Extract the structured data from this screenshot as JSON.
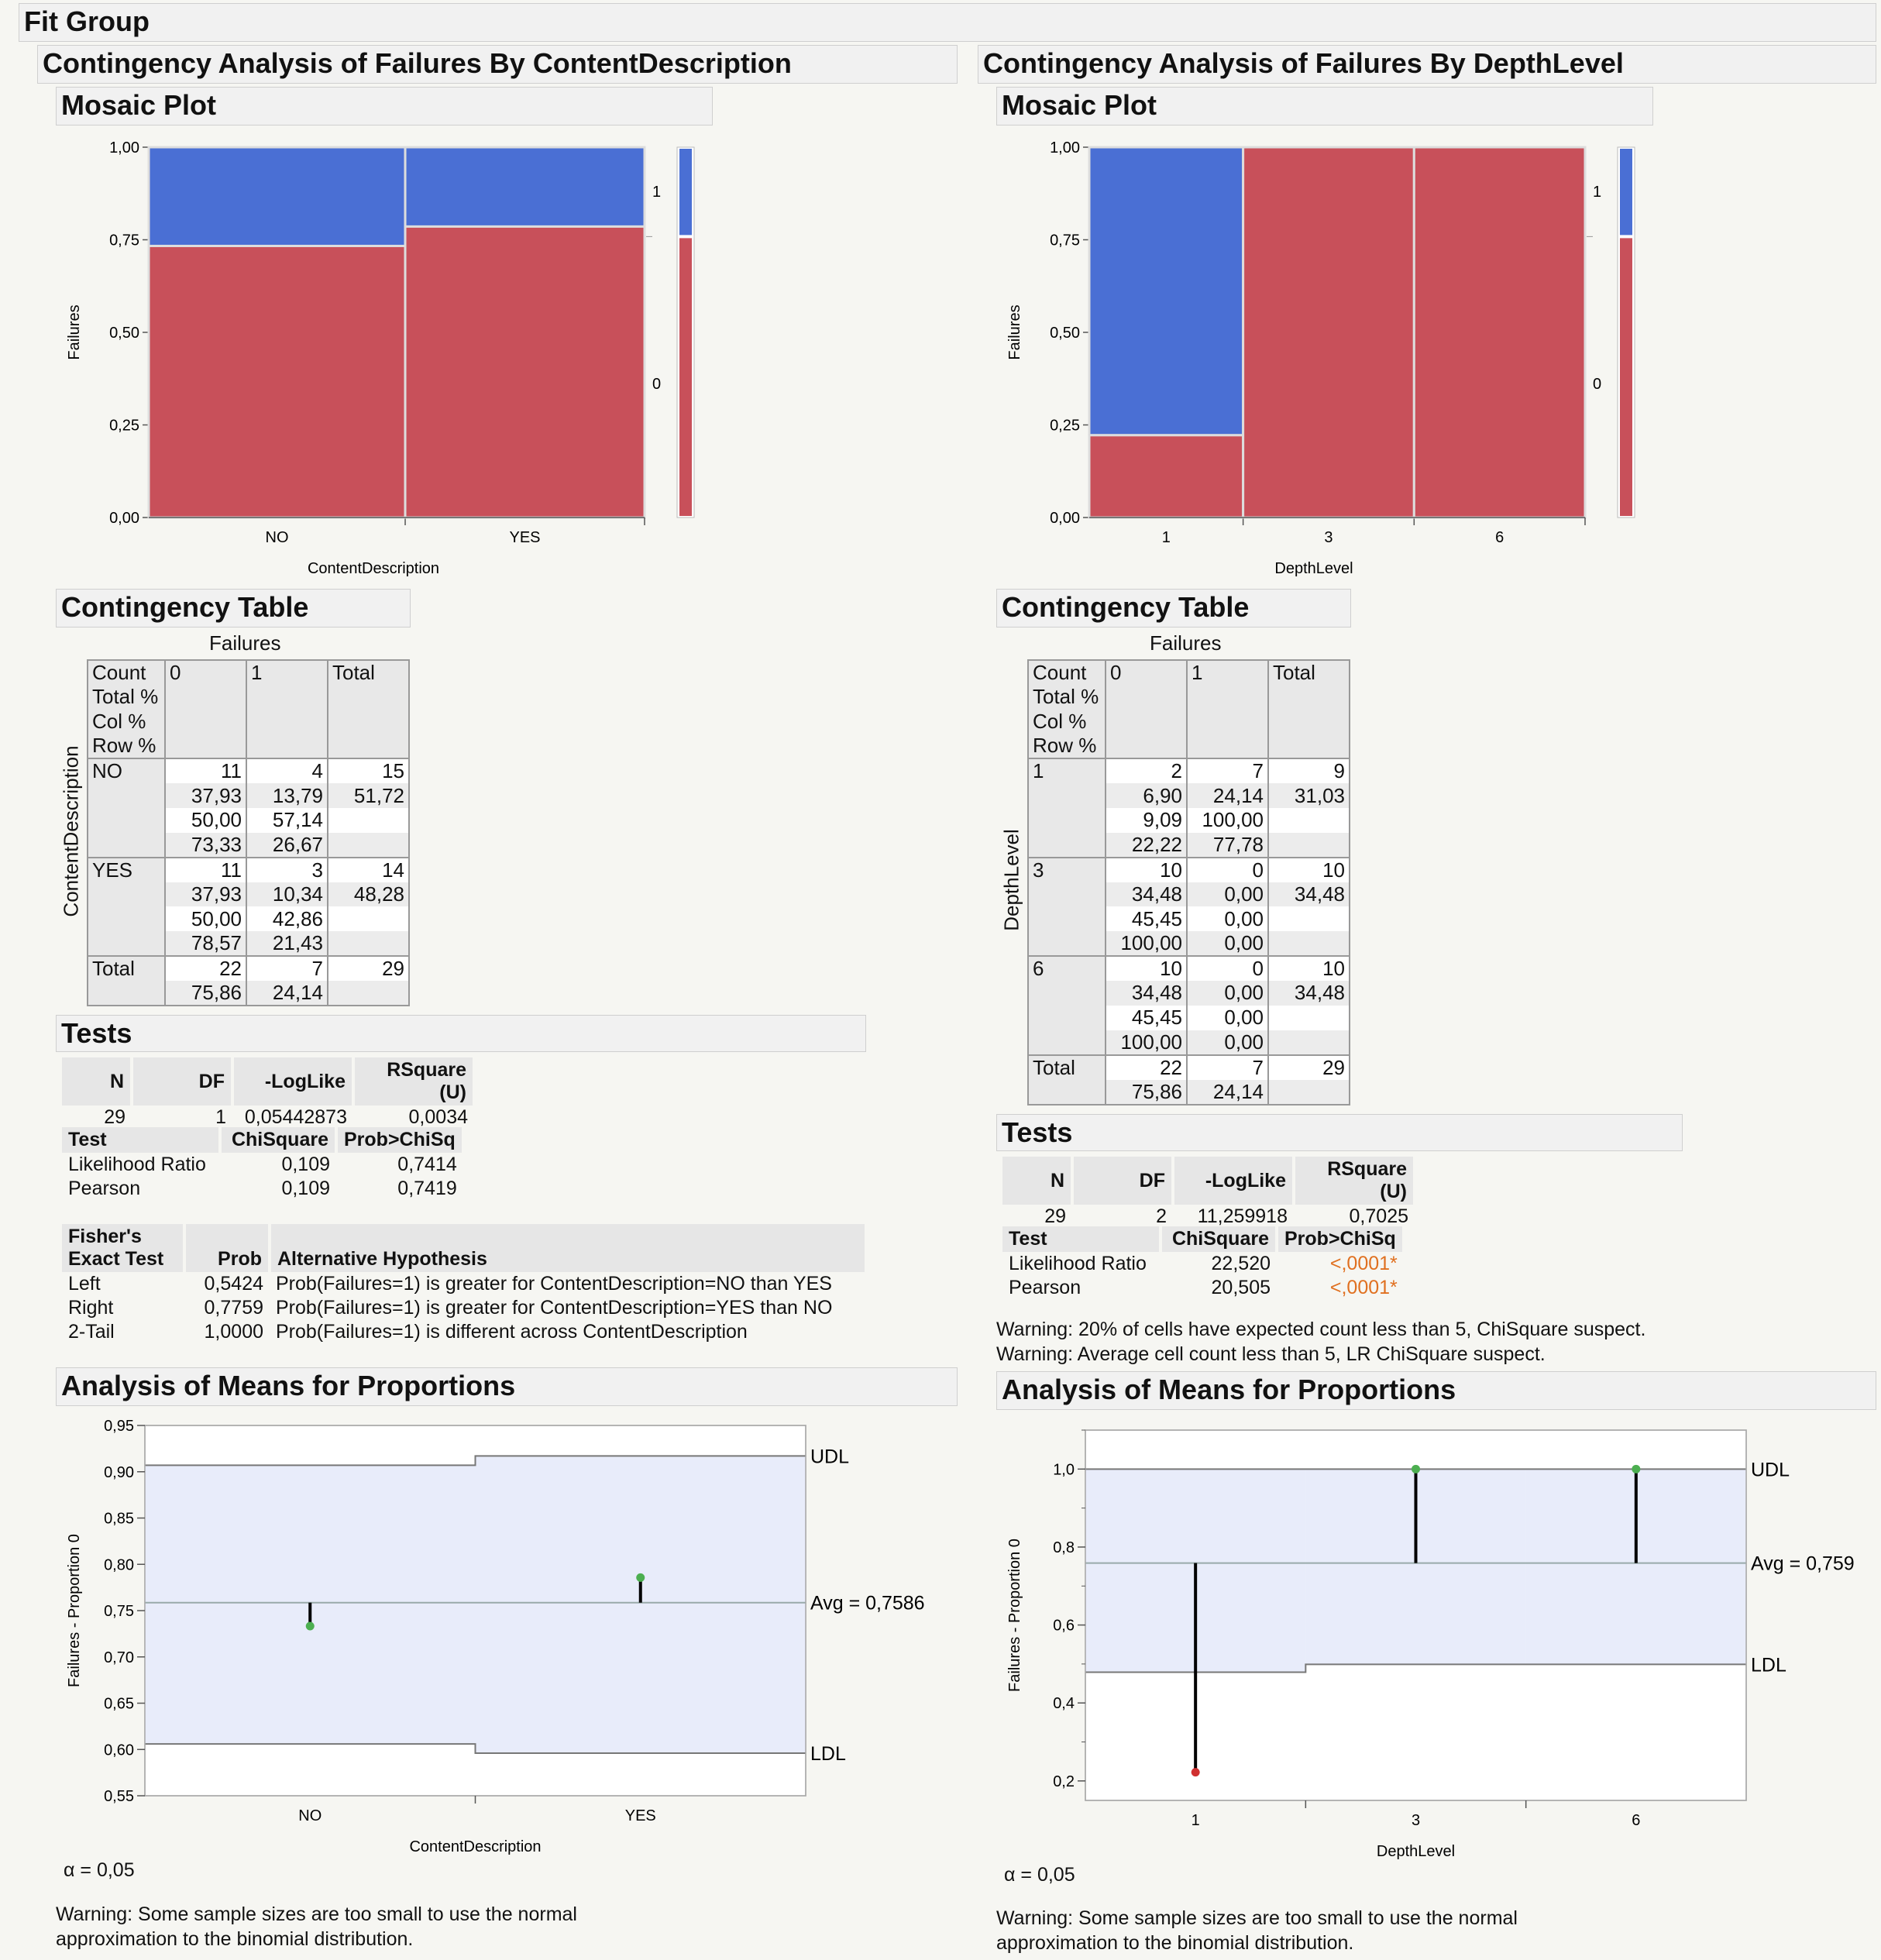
{
  "title": "Fit Group",
  "colors": {
    "blue": "#4a6fd4",
    "red": "#c8505a",
    "band": "#e8ecfa",
    "orange": "#e07020",
    "green": "#4caf50"
  },
  "left": {
    "title": "Contingency Analysis of Failures By ContentDescription",
    "mosaic": {
      "title": "Mosaic Plot",
      "ylabel": "Failures",
      "xlabel": "ContentDescription",
      "yticks": [
        "1,00",
        "0,75",
        "0,50",
        "0,25",
        "0,00"
      ],
      "categories": [
        "NO",
        "YES"
      ],
      "legend": [
        "1",
        "0"
      ]
    },
    "table": {
      "title": "Contingency Table",
      "col_header": "Failures",
      "row_header": "ContentDescription",
      "stat_labels": [
        "Count",
        "Total %",
        "Col %",
        "Row %"
      ],
      "cols": [
        "0",
        "1",
        "Total"
      ],
      "rows": [
        {
          "label": "NO",
          "c0": [
            "11",
            "37,93",
            "50,00",
            "73,33"
          ],
          "c1": [
            "4",
            "13,79",
            "57,14",
            "26,67"
          ],
          "tot": [
            "15",
            "51,72"
          ]
        },
        {
          "label": "YES",
          "c0": [
            "11",
            "37,93",
            "50,00",
            "78,57"
          ],
          "c1": [
            "3",
            "10,34",
            "42,86",
            "21,43"
          ],
          "tot": [
            "14",
            "48,28"
          ]
        }
      ],
      "total": {
        "label": "Total",
        "c0": [
          "22",
          "75,86"
        ],
        "c1": [
          "7",
          "24,14"
        ],
        "tot": [
          "29"
        ]
      }
    },
    "tests": {
      "title": "Tests",
      "summary_head": [
        "N",
        "DF",
        "-LogLike",
        "RSquare (U)"
      ],
      "summary_vals": [
        "29",
        "1",
        "0,05442873",
        "0,0034"
      ],
      "chi_head": [
        "Test",
        "ChiSquare",
        "Prob>ChiSq"
      ],
      "chi_rows": [
        [
          "Likelihood Ratio",
          "0,109",
          "0,7414"
        ],
        [
          "Pearson",
          "0,109",
          "0,7419"
        ]
      ],
      "fisher_head": [
        "Fisher's",
        "Exact Test",
        "Prob",
        "Alternative Hypothesis"
      ],
      "fisher_rows": [
        [
          "Left",
          "0,5424",
          "Prob(Failures=1) is greater for ContentDescription=NO than YES"
        ],
        [
          "Right",
          "0,7759",
          "Prob(Failures=1) is greater for ContentDescription=YES than NO"
        ],
        [
          "2-Tail",
          "1,0000",
          "Prob(Failures=1) is different across ContentDescription"
        ]
      ]
    },
    "anom": {
      "title": "Analysis of Means for Proportions",
      "ylabel": "Failures - Proportion 0",
      "xlabel": "ContentDescription",
      "yticks": [
        "0,95",
        "0,90",
        "0,85",
        "0,80",
        "0,75",
        "0,70",
        "0,65",
        "0,60",
        "0,55"
      ],
      "categories": [
        "NO",
        "YES"
      ],
      "udl": "UDL",
      "avg": "Avg = 0,7586",
      "ldl": "LDL",
      "alpha": "α = 0,05",
      "warning1": "Warning: Some sample sizes are too small to use the normal",
      "warning2": "approximation to the binomial distribution."
    }
  },
  "right": {
    "title": "Contingency Analysis of Failures By DepthLevel",
    "mosaic": {
      "title": "Mosaic Plot",
      "ylabel": "Failures",
      "xlabel": "DepthLevel",
      "yticks": [
        "1,00",
        "0,75",
        "0,50",
        "0,25",
        "0,00"
      ],
      "categories": [
        "1",
        "3",
        "6"
      ],
      "legend": [
        "1",
        "0"
      ]
    },
    "table": {
      "title": "Contingency Table",
      "col_header": "Failures",
      "row_header": "DepthLevel",
      "stat_labels": [
        "Count",
        "Total %",
        "Col %",
        "Row %"
      ],
      "cols": [
        "0",
        "1",
        "Total"
      ],
      "rows": [
        {
          "label": "1",
          "c0": [
            "2",
            "6,90",
            "9,09",
            "22,22"
          ],
          "c1": [
            "7",
            "24,14",
            "100,00",
            "77,78"
          ],
          "tot": [
            "9",
            "31,03"
          ]
        },
        {
          "label": "3",
          "c0": [
            "10",
            "34,48",
            "45,45",
            "100,00"
          ],
          "c1": [
            "0",
            "0,00",
            "0,00",
            "0,00"
          ],
          "tot": [
            "10",
            "34,48"
          ]
        },
        {
          "label": "6",
          "c0": [
            "10",
            "34,48",
            "45,45",
            "100,00"
          ],
          "c1": [
            "0",
            "0,00",
            "0,00",
            "0,00"
          ],
          "tot": [
            "10",
            "34,48"
          ]
        }
      ],
      "total": {
        "label": "Total",
        "c0": [
          "22",
          "75,86"
        ],
        "c1": [
          "7",
          "24,14"
        ],
        "tot": [
          "29"
        ]
      }
    },
    "tests": {
      "title": "Tests",
      "summary_head": [
        "N",
        "DF",
        "-LogLike",
        "RSquare (U)"
      ],
      "summary_vals": [
        "29",
        "2",
        "11,259918",
        "0,7025"
      ],
      "chi_head": [
        "Test",
        "ChiSquare",
        "Prob>ChiSq"
      ],
      "chi_rows": [
        [
          "Likelihood Ratio",
          "22,520",
          "<,0001*"
        ],
        [
          "Pearson",
          "20,505",
          "<,0001*"
        ]
      ],
      "warning1": "Warning: 20% of cells have expected count less than 5, ChiSquare suspect.",
      "warning2": "Warning: Average cell count less than 5, LR ChiSquare suspect."
    },
    "anom": {
      "title": "Analysis of Means for Proportions",
      "ylabel": "Failures - Proportion 0",
      "xlabel": "DepthLevel",
      "yticks": [
        "1,0",
        "0,8",
        "0,6",
        "0,4",
        "0,2"
      ],
      "categories": [
        "1",
        "3",
        "6"
      ],
      "udl": "UDL",
      "avg": "Avg = 0,759",
      "ldl": "LDL",
      "alpha": "α = 0,05",
      "warning1": "Warning: Some sample sizes are too small to use the normal",
      "warning2": "approximation to the binomial distribution."
    }
  },
  "chart_data": [
    {
      "type": "mosaic",
      "title": "Mosaic Plot",
      "xlabel": "ContentDescription",
      "ylabel": "Failures",
      "categories": [
        "NO",
        "YES"
      ],
      "widths": [
        15,
        14
      ],
      "series": [
        {
          "name": "0",
          "values": [
            0.7333,
            0.7857
          ]
        },
        {
          "name": "1",
          "values": [
            0.2667,
            0.2143
          ]
        }
      ],
      "ylim": [
        0,
        1
      ]
    },
    {
      "type": "mosaic",
      "title": "Mosaic Plot",
      "xlabel": "DepthLevel",
      "ylabel": "Failures",
      "categories": [
        "1",
        "3",
        "6"
      ],
      "widths": [
        9,
        10,
        10
      ],
      "series": [
        {
          "name": "0",
          "values": [
            0.2222,
            1.0,
            1.0
          ]
        },
        {
          "name": "1",
          "values": [
            0.7778,
            0,
            0
          ]
        }
      ],
      "ylim": [
        0,
        1
      ]
    },
    {
      "type": "line",
      "title": "Analysis of Means for Proportions",
      "xlabel": "ContentDescription",
      "ylabel": "Failures - Proportion 0",
      "categories": [
        "NO",
        "YES"
      ],
      "values": [
        0.7333,
        0.7857
      ],
      "avg": 0.7586,
      "udl": [
        0.907,
        0.917
      ],
      "ldl": [
        0.606,
        0.596
      ],
      "ylim": [
        0.55,
        0.95
      ]
    },
    {
      "type": "line",
      "title": "Analysis of Means for Proportions",
      "xlabel": "DepthLevel",
      "ylabel": "Failures - Proportion 0",
      "categories": [
        "1",
        "3",
        "6"
      ],
      "values": [
        0.2222,
        1.0,
        1.0
      ],
      "avg": 0.759,
      "udl": [
        1.0,
        1.0,
        1.0
      ],
      "ldl": [
        0.479,
        0.499,
        0.499
      ],
      "ylim": [
        0.15,
        1.1
      ]
    }
  ]
}
